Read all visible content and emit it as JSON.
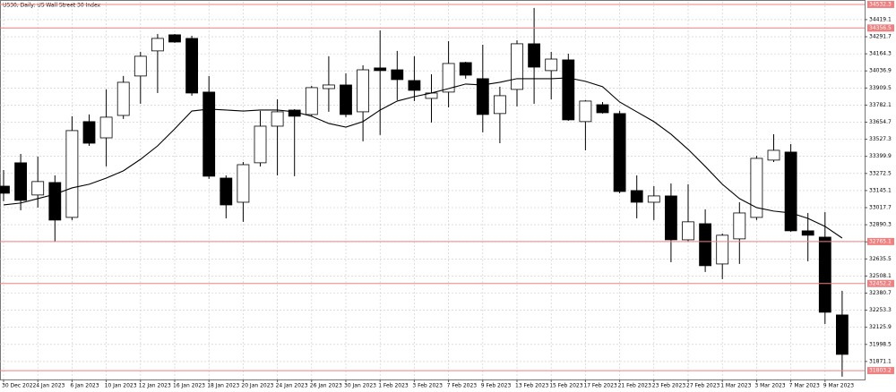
{
  "chart_data": {
    "type": "candlestick",
    "title": "US30, Daily:  US Wall Street 30 Index",
    "categories": [
      "30 Dec 2022",
      null,
      "4 Jan 2023",
      null,
      "6 Jan 2023",
      null,
      "10 Jan 2023",
      null,
      "12 Jan 2023",
      null,
      "16 Jan 2023",
      null,
      "18 Jan 2023",
      null,
      "20 Jan 2023",
      null,
      "24 Jan 2023",
      null,
      "26 Jan 2023",
      null,
      "30 Jan 2023",
      null,
      "1 Feb 2023",
      null,
      "3 Feb 2023",
      null,
      "7 Feb 2023",
      null,
      "9 Feb 2023",
      null,
      "13 Feb 2023",
      null,
      "15 Feb 2023",
      null,
      "17 Feb 2023",
      null,
      "21 Feb 2023",
      null,
      "23 Feb 2023",
      null,
      "27 Feb 2023",
      null,
      "1 Mar 2023",
      null,
      "3 Mar 2023",
      null,
      "7 Mar 2023",
      null,
      "9 Mar 2023",
      null
    ],
    "open": [
      33178,
      33352,
      33112,
      33205,
      32945,
      33659,
      33538,
      33705,
      33999,
      34186,
      34306,
      34279,
      33879,
      33238,
      33058,
      33352,
      33625,
      33745,
      33712,
      33905,
      33932,
      33732,
      34059,
      34045,
      33965,
      33832,
      33879,
      34099,
      33979,
      33719,
      33899,
      34239,
      34039,
      34119,
      33659,
      33785,
      33719,
      33145,
      33058,
      33105,
      32778,
      32898,
      32598,
      32785,
      32945,
      33372,
      33432,
      32845,
      32798,
      32218
    ],
    "high": [
      33298,
      33418,
      33398,
      33258,
      33699,
      33712,
      33899,
      33999,
      34179,
      34312,
      34312,
      34299,
      33999,
      33258,
      33358,
      33739,
      33825,
      33752,
      33925,
      34146,
      34019,
      34079,
      34339,
      34186,
      34146,
      34012,
      34259,
      34105,
      34232,
      33919,
      34265,
      34506,
      34179,
      34165,
      33819,
      33805,
      33739,
      33258,
      33178,
      33198,
      33192,
      33005,
      32825,
      33058,
      33405,
      33565,
      33492,
      32978,
      32985,
      32398
    ],
    "low": [
      33065,
      32998,
      33018,
      32765,
      32925,
      33478,
      33325,
      33679,
      33792,
      33872,
      34246,
      33852,
      33232,
      32938,
      32912,
      33325,
      33258,
      33252,
      33699,
      33732,
      33692,
      33512,
      33559,
      33819,
      33812,
      33652,
      33765,
      33979,
      33579,
      33498,
      33772,
      33792,
      33825,
      33665,
      33445,
      33719,
      33125,
      32938,
      32925,
      32611,
      32765,
      32538,
      32485,
      32598,
      32925,
      33358,
      32838,
      32618,
      32151,
      31758
    ],
    "close": [
      33125,
      33072,
      33212,
      32925,
      33592,
      33498,
      33692,
      33952,
      34146,
      34279,
      34252,
      33872,
      33252,
      33038,
      33338,
      33625,
      33732,
      33699,
      33912,
      33932,
      33712,
      34045,
      34039,
      33972,
      33892,
      33872,
      34092,
      34005,
      33712,
      33852,
      34239,
      34065,
      34125,
      33672,
      33812,
      33725,
      33138,
      33058,
      33105,
      32778,
      32912,
      32585,
      32812,
      32978,
      33385,
      33445,
      32845,
      32812,
      32238,
      31924
    ],
    "moving_average": [
      33038,
      33052,
      33085,
      33118,
      33165,
      33192,
      33238,
      33292,
      33378,
      33478,
      33605,
      33738,
      33752,
      33745,
      33738,
      33745,
      33745,
      33732,
      33699,
      33645,
      33618,
      33659,
      33745,
      33812,
      33845,
      33872,
      33905,
      33939,
      33932,
      33952,
      33979,
      33979,
      33979,
      33985,
      33959,
      33919,
      33805,
      33732,
      33659,
      33565,
      33452,
      33325,
      33192,
      33085,
      33018,
      32992,
      32978,
      32938,
      32878,
      32791
    ],
    "ylim": [
      31737,
      34552
    ],
    "yticks": [
      31871.1,
      31998.5,
      32125.9,
      32253.3,
      32380.7,
      32508.1,
      32635.5,
      32762.9,
      32890.3,
      33017.7,
      33145.1,
      33272.5,
      33399.9,
      33527.3,
      33654.7,
      33782.1,
      33909.5,
      34036.9,
      34164.3,
      34291.7,
      34419.1
    ],
    "levels": [
      {
        "value": 34532.3,
        "label": "34532.3"
      },
      {
        "value": 34356.5,
        "label": "34356.5"
      },
      {
        "value": 32765.1,
        "label": "32765.1"
      },
      {
        "value": 32452.2,
        "label": "32452.2"
      },
      {
        "value": 31803.2,
        "label": "31803.2"
      }
    ],
    "grid": true,
    "up_color": "#ffffff",
    "down_color": "#000000",
    "line_color": "#000000",
    "level_color": "#f08080"
  }
}
